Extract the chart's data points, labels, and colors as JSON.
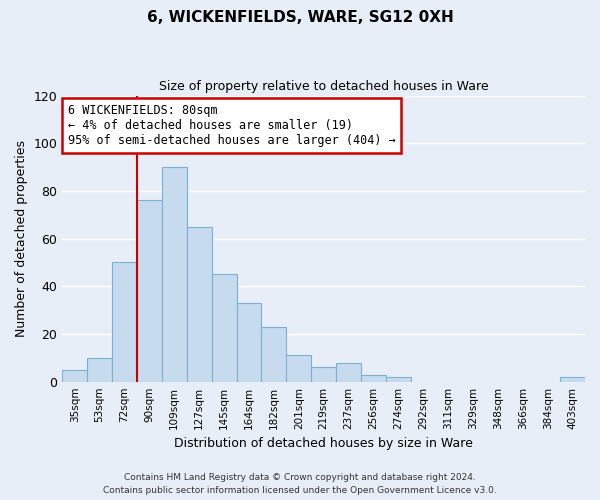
{
  "title": "6, WICKENFIELDS, WARE, SG12 0XH",
  "subtitle": "Size of property relative to detached houses in Ware",
  "xlabel": "Distribution of detached houses by size in Ware",
  "ylabel": "Number of detached properties",
  "bar_color": "#c6dcee",
  "bar_edge_color": "#7bafd4",
  "categories": [
    "35sqm",
    "53sqm",
    "72sqm",
    "90sqm",
    "109sqm",
    "127sqm",
    "145sqm",
    "164sqm",
    "182sqm",
    "201sqm",
    "219sqm",
    "237sqm",
    "256sqm",
    "274sqm",
    "292sqm",
    "311sqm",
    "329sqm",
    "348sqm",
    "366sqm",
    "384sqm",
    "403sqm"
  ],
  "values": [
    5,
    10,
    50,
    76,
    90,
    65,
    45,
    33,
    23,
    11,
    6,
    8,
    3,
    2,
    0,
    0,
    0,
    0,
    0,
    0,
    2
  ],
  "ylim": [
    0,
    120
  ],
  "yticks": [
    0,
    20,
    40,
    60,
    80,
    100,
    120
  ],
  "vline_index": 2,
  "vline_color": "#cc0000",
  "annotation_line1": "6 WICKENFIELDS: 80sqm",
  "annotation_line2": "← 4% of detached houses are smaller (19)",
  "annotation_line3": "95% of semi-detached houses are larger (404) →",
  "annotation_box_edge": "#cc0000",
  "annotation_box_face": "white",
  "footer_line1": "Contains HM Land Registry data © Crown copyright and database right 2024.",
  "footer_line2": "Contains public sector information licensed under the Open Government Licence v3.0.",
  "background_color": "#e8eef7"
}
